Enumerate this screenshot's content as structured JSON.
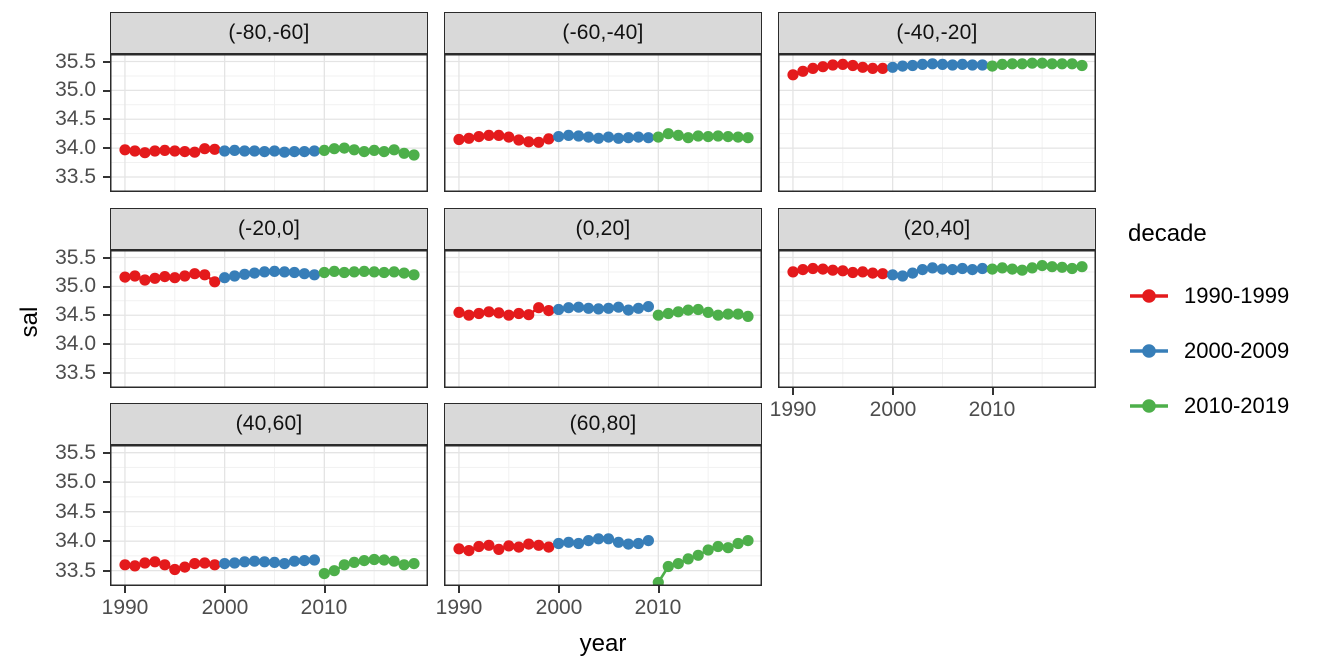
{
  "figure": {
    "y_axis_title": "sal",
    "x_axis_title": "year"
  },
  "legend": {
    "title": "decade",
    "entries": [
      {
        "label": "1990-1999",
        "color": "#E41A1C"
      },
      {
        "label": "2000-2009",
        "color": "#377EB8"
      },
      {
        "label": "2010-2019",
        "color": "#4DAF4A"
      }
    ]
  },
  "style": {
    "strip_fill": "#D9D9D9",
    "panel_border": "#2B2B2B",
    "grid_major": "#E4E4E4",
    "grid_minor": "#F1F1F1",
    "tick_label_color": "#4D4D4D"
  },
  "chart_data": {
    "type": "scatter",
    "title": "",
    "xlabel": "year",
    "ylabel": "sal",
    "legend_title": "decade",
    "legend_position": "right",
    "grid": "major+minor",
    "xlim": [
      1988.5,
      2020.4
    ],
    "ylim": [
      33.24,
      35.63
    ],
    "x_tick_values": [
      1990,
      2000,
      2010
    ],
    "x_tick_labels": [
      "1990",
      "2000",
      "2010"
    ],
    "x_minor": [
      1995,
      2005,
      2015
    ],
    "y_tick_values": [
      33.5,
      34.0,
      34.5,
      35.0,
      35.5
    ],
    "y_tick_labels": [
      "33.5",
      "34.0",
      "34.5",
      "35.0",
      "35.5"
    ],
    "y_minor": [
      33.25,
      33.75,
      34.25,
      34.75,
      35.25
    ],
    "series": [
      {
        "name": "1990-1999",
        "color": "#E41A1C",
        "start_year": 1990
      },
      {
        "name": "2000-2009",
        "color": "#377EB8",
        "start_year": 2000
      },
      {
        "name": "2010-2019",
        "color": "#4DAF4A",
        "start_year": 2010
      }
    ],
    "facets": [
      {
        "label": "(-80,-60]",
        "values": [
          [
            33.97,
            33.95,
            33.92,
            33.95,
            33.96,
            33.95,
            33.94,
            33.93,
            33.99,
            33.98
          ],
          [
            33.95,
            33.96,
            33.95,
            33.95,
            33.94,
            33.95,
            33.93,
            33.94,
            33.94,
            33.95
          ],
          [
            33.96,
            33.99,
            34.0,
            33.97,
            33.94,
            33.96,
            33.94,
            33.97,
            33.91,
            33.88
          ]
        ]
      },
      {
        "label": "(-60,-40]",
        "values": [
          [
            34.15,
            34.17,
            34.2,
            34.22,
            34.22,
            34.19,
            34.14,
            34.11,
            34.1,
            34.16
          ],
          [
            34.2,
            34.22,
            34.21,
            34.19,
            34.17,
            34.19,
            34.17,
            34.18,
            34.19,
            34.18
          ],
          [
            34.19,
            34.25,
            34.22,
            34.18,
            34.21,
            34.2,
            34.21,
            34.2,
            34.19,
            34.18
          ]
        ]
      },
      {
        "label": "(-40,-20]",
        "values": [
          [
            35.27,
            35.33,
            35.38,
            35.41,
            35.44,
            35.45,
            35.43,
            35.4,
            35.38,
            35.38
          ],
          [
            35.4,
            35.42,
            35.43,
            35.45,
            35.46,
            35.45,
            35.44,
            35.45,
            35.44,
            35.44
          ],
          [
            35.42,
            35.45,
            35.46,
            35.46,
            35.47,
            35.47,
            35.46,
            35.46,
            35.46,
            35.43
          ]
        ]
      },
      {
        "label": "(-20,0]",
        "values": [
          [
            35.16,
            35.18,
            35.11,
            35.14,
            35.17,
            35.15,
            35.18,
            35.22,
            35.2,
            35.08
          ],
          [
            35.15,
            35.18,
            35.21,
            35.23,
            35.25,
            35.26,
            35.25,
            35.24,
            35.22,
            35.2
          ],
          [
            35.24,
            35.26,
            35.24,
            35.25,
            35.26,
            35.25,
            35.24,
            35.25,
            35.23,
            35.2
          ]
        ]
      },
      {
        "label": "(0,20]",
        "values": [
          [
            34.55,
            34.5,
            34.53,
            34.56,
            34.54,
            34.5,
            34.53,
            34.51,
            34.63,
            34.58
          ],
          [
            34.6,
            34.63,
            34.64,
            34.62,
            34.61,
            34.62,
            34.64,
            34.59,
            34.62,
            34.65
          ],
          [
            34.5,
            34.53,
            34.56,
            34.59,
            34.6,
            34.55,
            34.5,
            34.52,
            34.52,
            34.48
          ]
        ]
      },
      {
        "label": "(20,40]",
        "values": [
          [
            35.25,
            35.29,
            35.31,
            35.3,
            35.28,
            35.27,
            35.24,
            35.25,
            35.23,
            35.22
          ],
          [
            35.2,
            35.18,
            35.23,
            35.29,
            35.32,
            35.3,
            35.29,
            35.31,
            35.29,
            35.31
          ],
          [
            35.3,
            35.32,
            35.3,
            35.28,
            35.32,
            35.36,
            35.34,
            35.33,
            35.31,
            35.34
          ]
        ]
      },
      {
        "label": "(40,60]",
        "values": [
          [
            33.6,
            33.58,
            33.63,
            33.65,
            33.6,
            33.52,
            33.56,
            33.62,
            33.63,
            33.6
          ],
          [
            33.62,
            33.63,
            33.65,
            33.66,
            33.65,
            33.64,
            33.62,
            33.66,
            33.67,
            33.68
          ],
          [
            33.45,
            33.5,
            33.6,
            33.64,
            33.67,
            33.69,
            33.68,
            33.66,
            33.6,
            33.62
          ]
        ]
      },
      {
        "label": "(60,80]",
        "values": [
          [
            33.87,
            33.84,
            33.91,
            33.93,
            33.86,
            33.92,
            33.9,
            33.95,
            33.93,
            33.9
          ],
          [
            33.96,
            33.98,
            33.96,
            34.01,
            34.04,
            34.04,
            33.98,
            33.95,
            33.96,
            34.01
          ],
          [
            33.3,
            33.57,
            33.62,
            33.7,
            33.76,
            33.85,
            33.91,
            33.89,
            33.96,
            34.01
          ]
        ]
      }
    ]
  }
}
